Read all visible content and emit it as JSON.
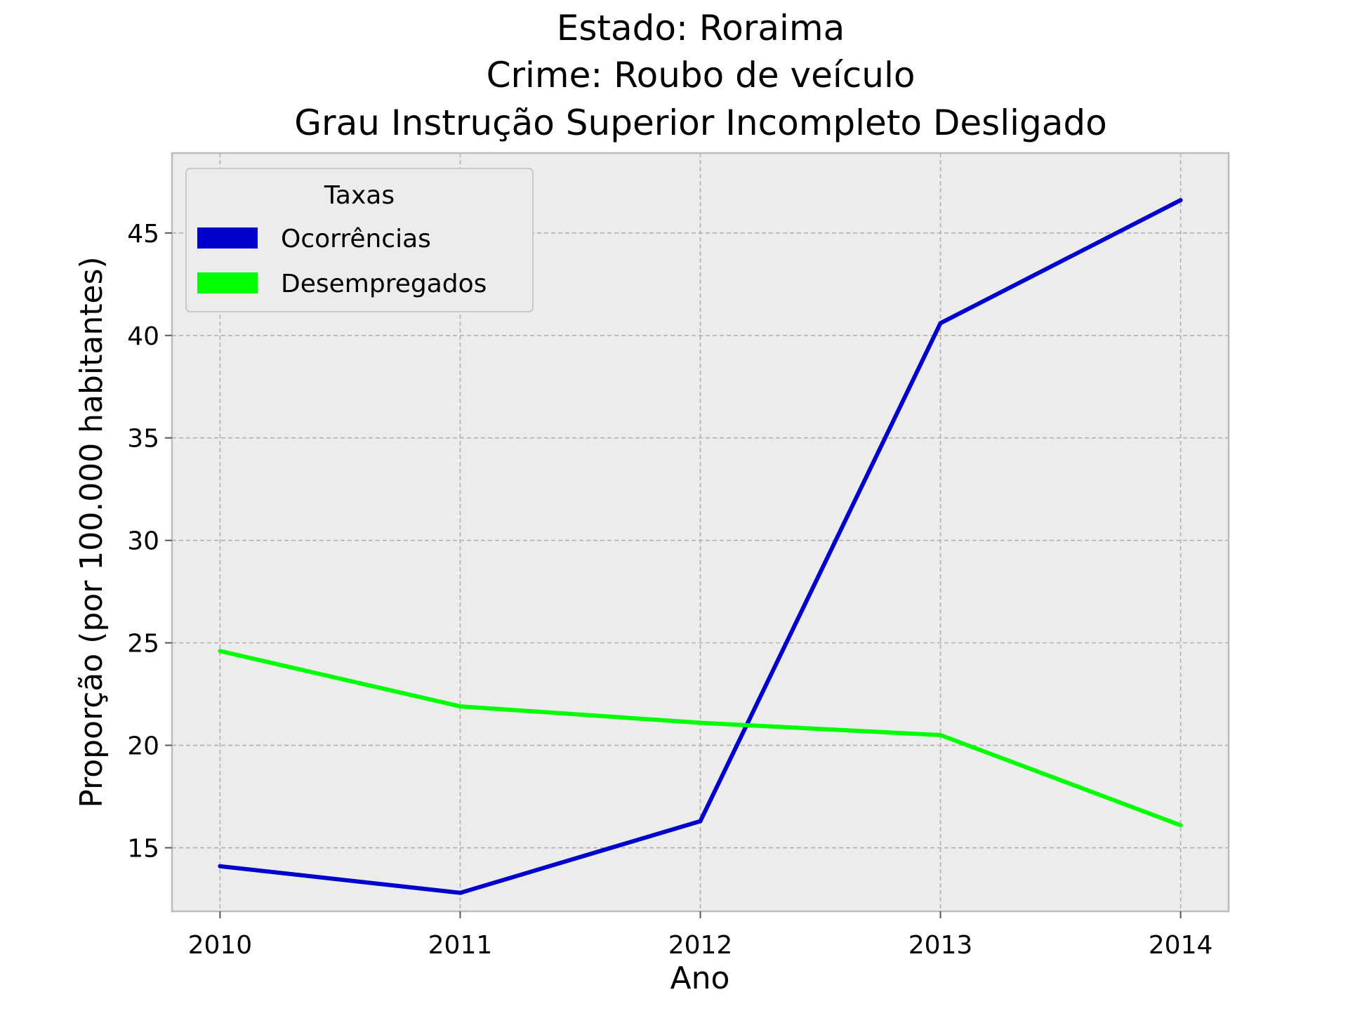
{
  "chart_data": {
    "type": "line",
    "title_lines": [
      "Estado: Roraima",
      "Crime: Roubo de veículo",
      "Grau Instrução  Superior Incompleto   Desligado"
    ],
    "xlabel": "Ano",
    "ylabel": "Proporção (por 100.000 habitantes)",
    "x": [
      2010,
      2011,
      2012,
      2013,
      2014
    ],
    "x_tick_labels": [
      "2010",
      "2011",
      "2012",
      "2013",
      "2014"
    ],
    "y_ticks": [
      15,
      20,
      25,
      30,
      35,
      40,
      45
    ],
    "y_tick_labels": [
      "15",
      "20",
      "25",
      "30",
      "35",
      "40",
      "45"
    ],
    "xlim": [
      2009.8,
      2014.2
    ],
    "ylim": [
      11.9,
      48.9
    ],
    "grid": true,
    "legend": {
      "title": "Taxas",
      "placement": "upper-left"
    },
    "series": [
      {
        "name": "Ocorrências",
        "color": "#0000cc",
        "values": [
          14.1,
          12.8,
          16.3,
          40.6,
          46.6
        ]
      },
      {
        "name": "Desempregados",
        "color": "#00ff00",
        "values": [
          24.6,
          21.9,
          21.1,
          20.5,
          16.1
        ]
      }
    ],
    "colors": {
      "plot_background": "#ececec",
      "grid": "#b0b0b0",
      "frame": "#bcbcbc"
    }
  }
}
